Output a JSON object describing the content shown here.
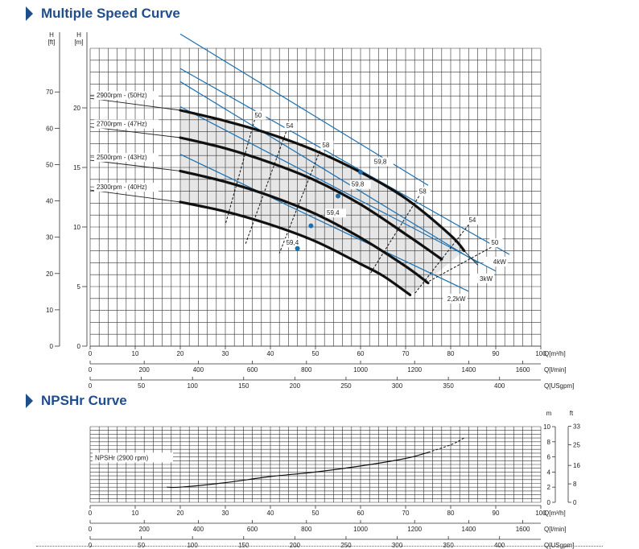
{
  "sections": {
    "speed_title": "Multiple Speed Curve",
    "npsh_title": "NPSHr Curve"
  },
  "colors": {
    "title": "#1f4e8c",
    "efficiency_line": "#1a6fb0",
    "grid": "#333333",
    "shade": "#e6e6e6"
  },
  "chart_data": [
    {
      "type": "line",
      "title": "Multiple Speed Curve",
      "xlabel": "Q[m³/h]",
      "x_secondary_units": [
        "Q[l/min]",
        "Q[USgpm]"
      ],
      "ylabel_left_outer": "H [ft]",
      "ylabel_left_inner": "H [m]",
      "xlim": [
        0,
        100
      ],
      "ylim": [
        0,
        25
      ],
      "x_ticks": [
        0,
        10,
        20,
        30,
        40,
        50,
        60,
        70,
        80,
        90,
        100
      ],
      "y_ticks_m": [
        0,
        5,
        10,
        15,
        20
      ],
      "y_ticks_ft": [
        0,
        10,
        20,
        30,
        40,
        50,
        60,
        70
      ],
      "lpm_ticks": [
        0,
        200,
        400,
        600,
        800,
        1000,
        1200,
        1400,
        1600
      ],
      "gpm_ticks": [
        0,
        50,
        100,
        150,
        200,
        250,
        300,
        350,
        400
      ],
      "grid": true,
      "series": [
        {
          "name": "2900rpm - (50Hz)",
          "x": [
            0,
            20,
            30,
            40,
            50,
            60,
            70,
            80,
            83
          ],
          "y": [
            20.8,
            19.8,
            18.9,
            17.8,
            16.4,
            14.6,
            12.4,
            9.3,
            8.0
          ]
        },
        {
          "name": "2700rpm - (47Hz)",
          "x": [
            0,
            20,
            30,
            40,
            50,
            60,
            70,
            78
          ],
          "y": [
            18.4,
            17.5,
            16.6,
            15.4,
            13.9,
            11.9,
            9.4,
            7.3
          ]
        },
        {
          "name": "2500rpm - (43Hz)",
          "x": [
            0,
            20,
            30,
            40,
            50,
            60,
            70,
            75
          ],
          "y": [
            15.6,
            14.7,
            13.8,
            12.6,
            11.1,
            9.1,
            6.7,
            5.3
          ]
        },
        {
          "name": "2300rpm - (40Hz)",
          "x": [
            0,
            20,
            30,
            40,
            50,
            60,
            65,
            71
          ],
          "y": [
            13.1,
            12.1,
            11.3,
            10.2,
            8.8,
            6.9,
            5.9,
            4.3
          ]
        }
      ],
      "power_lines": [
        {
          "label": "4kW",
          "x": [
            20,
            93
          ],
          "y": [
            23.3,
            7.7
          ]
        },
        {
          "label": "3kW",
          "x": [
            20,
            90
          ],
          "y": [
            20.1,
            6.3
          ]
        },
        {
          "label": "2,2kW",
          "x": [
            20,
            84
          ],
          "y": [
            16.1,
            4.6
          ]
        }
      ],
      "efficiency_labels": [
        {
          "label": "50",
          "x": 36.5,
          "y": 19.2
        },
        {
          "label": "54",
          "x": 43.5,
          "y": 18.3
        },
        {
          "label": "58",
          "x": 51.5,
          "y": 16.7
        },
        {
          "label": "59,8",
          "x": 63,
          "y": 15.3
        },
        {
          "label": "59,8",
          "x": 58,
          "y": 13.4
        },
        {
          "label": "59,4",
          "x": 52.5,
          "y": 11.0
        },
        {
          "label": "59,4",
          "x": 43.5,
          "y": 8.5
        },
        {
          "label": "58",
          "x": 73,
          "y": 12.8
        },
        {
          "label": "54",
          "x": 84,
          "y": 10.4
        },
        {
          "label": "50",
          "x": 89,
          "y": 8.5
        }
      ]
    },
    {
      "type": "line",
      "title": "NPSHr Curve",
      "xlabel": "Q[m³/h]",
      "x_secondary_units": [
        "Q[l/min]",
        "Q[USgpm]"
      ],
      "ylabel_right_inner": "m",
      "ylabel_right_outer": "ft",
      "xlim": [
        0,
        100
      ],
      "ylim": [
        0,
        10
      ],
      "y_ticks_m": [
        0,
        2,
        4,
        6,
        8,
        10
      ],
      "y_ticks_ft": [
        0,
        8,
        16,
        25,
        33
      ],
      "x_ticks": [
        0,
        10,
        20,
        30,
        40,
        50,
        60,
        70,
        80,
        90,
        100
      ],
      "lpm_ticks": [
        0,
        200,
        400,
        600,
        800,
        1000,
        1200,
        1400,
        1600
      ],
      "gpm_ticks": [
        0,
        50,
        100,
        150,
        200,
        250,
        300,
        350,
        400
      ],
      "grid": true,
      "series": [
        {
          "name": "NPSHr (2900 rpm)",
          "x": [
            17,
            20,
            30,
            40,
            50,
            60,
            70,
            75,
            80,
            83
          ],
          "y": [
            2.0,
            2.0,
            2.6,
            3.4,
            4.0,
            4.8,
            5.8,
            6.6,
            7.6,
            8.5
          ]
        }
      ]
    }
  ]
}
